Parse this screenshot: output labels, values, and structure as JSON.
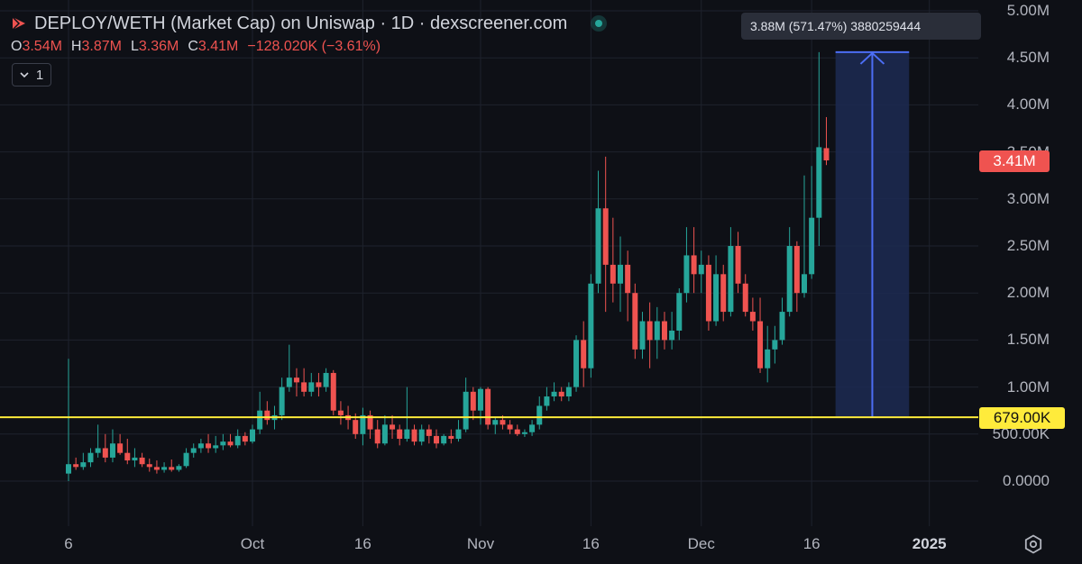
{
  "header": {
    "title": "DEPLOY/WETH (Market Cap) on Uniswap · 1D · dexscreener.com",
    "ohlc": {
      "open_label": "O",
      "open": "3.54M",
      "high_label": "H",
      "high": "3.87M",
      "low_label": "L",
      "low": "3.36M",
      "close_label": "C",
      "close": "3.41M",
      "change": "−128.020K (−3.61%)"
    },
    "collapse_count": "1"
  },
  "measure_tooltip": "3.88M (571.47%) 3880259444",
  "last_price_badge": "3.41M",
  "horizontal_line_badge": "679.00K",
  "colors": {
    "up": "#26a69a",
    "down": "#ef5350",
    "background": "#0e1016",
    "horizontal_line": "#ffeb3b",
    "measure_fill": "#1c2a52",
    "measure_line": "#4c6ef5"
  },
  "icons": [
    "dexscreener-logo-icon",
    "live-status-icon",
    "chevron-down-icon",
    "settings-icon"
  ],
  "chart_data": {
    "type": "candlestick",
    "y_axis": {
      "ticks": [
        "0.0000",
        "500.00K",
        "1.00M",
        "1.50M",
        "2.00M",
        "2.50M",
        "3.00M",
        "3.50M",
        "4.00M",
        "4.50M",
        "5.00M"
      ],
      "range": [
        0,
        5000000
      ]
    },
    "x_axis": {
      "ticks": [
        {
          "label": "6",
          "index": 0
        },
        {
          "label": "Oct",
          "index": 25
        },
        {
          "label": "16",
          "index": 40
        },
        {
          "label": "Nov",
          "index": 56
        },
        {
          "label": "16",
          "index": 71
        },
        {
          "label": "Dec",
          "index": 86
        },
        {
          "label": "16",
          "index": 101
        },
        {
          "label": "2025",
          "index": 117,
          "bold": true
        }
      ]
    },
    "horizontal_line": 679000,
    "measure": {
      "from_index": 104,
      "to_index": 114,
      "low": 679000,
      "high": 4560000
    },
    "candles": [
      [
        80000,
        1300000,
        0,
        180000
      ],
      [
        180000,
        250000,
        120000,
        150000
      ],
      [
        150000,
        300000,
        120000,
        200000
      ],
      [
        200000,
        350000,
        150000,
        300000
      ],
      [
        300000,
        600000,
        250000,
        350000
      ],
      [
        350000,
        500000,
        200000,
        250000
      ],
      [
        250000,
        550000,
        200000,
        400000
      ],
      [
        400000,
        500000,
        280000,
        300000
      ],
      [
        300000,
        450000,
        180000,
        220000
      ],
      [
        220000,
        350000,
        150000,
        250000
      ],
      [
        250000,
        300000,
        150000,
        180000
      ],
      [
        180000,
        240000,
        100000,
        150000
      ],
      [
        150000,
        220000,
        80000,
        120000
      ],
      [
        120000,
        200000,
        90000,
        150000
      ],
      [
        150000,
        230000,
        100000,
        120000
      ],
      [
        120000,
        180000,
        100000,
        160000
      ],
      [
        160000,
        350000,
        140000,
        300000
      ],
      [
        300000,
        400000,
        250000,
        350000
      ],
      [
        350000,
        450000,
        300000,
        400000
      ],
      [
        400000,
        500000,
        300000,
        350000
      ],
      [
        350000,
        480000,
        300000,
        380000
      ],
      [
        380000,
        500000,
        330000,
        420000
      ],
      [
        420000,
        500000,
        360000,
        380000
      ],
      [
        380000,
        550000,
        350000,
        480000
      ],
      [
        480000,
        520000,
        380000,
        420000
      ],
      [
        420000,
        600000,
        400000,
        550000
      ],
      [
        550000,
        950000,
        500000,
        750000
      ],
      [
        750000,
        850000,
        600000,
        650000
      ],
      [
        650000,
        800000,
        550000,
        700000
      ],
      [
        700000,
        1100000,
        650000,
        1000000
      ],
      [
        1000000,
        1450000,
        950000,
        1100000
      ],
      [
        1100000,
        1200000,
        900000,
        1050000
      ],
      [
        1050000,
        1200000,
        900000,
        950000
      ],
      [
        950000,
        1150000,
        900000,
        1050000
      ],
      [
        1050000,
        1150000,
        900000,
        1000000
      ],
      [
        1000000,
        1200000,
        950000,
        1150000
      ],
      [
        1150000,
        1180000,
        700000,
        750000
      ],
      [
        750000,
        850000,
        600000,
        700000
      ],
      [
        700000,
        800000,
        550000,
        650000
      ],
      [
        650000,
        720000,
        450000,
        500000
      ],
      [
        500000,
        780000,
        380000,
        700000
      ],
      [
        700000,
        750000,
        450000,
        550000
      ],
      [
        550000,
        650000,
        350000,
        400000
      ],
      [
        400000,
        700000,
        380000,
        600000
      ],
      [
        600000,
        700000,
        450000,
        550000
      ],
      [
        550000,
        600000,
        380000,
        450000
      ],
      [
        450000,
        1000000,
        420000,
        550000
      ],
      [
        550000,
        600000,
        380000,
        420000
      ],
      [
        420000,
        600000,
        380000,
        550000
      ],
      [
        550000,
        600000,
        400000,
        480000
      ],
      [
        480000,
        550000,
        350000,
        400000
      ],
      [
        400000,
        500000,
        380000,
        480000
      ],
      [
        480000,
        550000,
        400000,
        450000
      ],
      [
        450000,
        650000,
        420000,
        550000
      ],
      [
        550000,
        1100000,
        520000,
        950000
      ],
      [
        950000,
        1000000,
        650000,
        750000
      ],
      [
        750000,
        1000000,
        600000,
        980000
      ],
      [
        980000,
        1000000,
        550000,
        600000
      ],
      [
        600000,
        680000,
        500000,
        650000
      ],
      [
        650000,
        700000,
        550000,
        600000
      ],
      [
        600000,
        650000,
        500000,
        550000
      ],
      [
        550000,
        600000,
        480000,
        500000
      ],
      [
        500000,
        550000,
        470000,
        520000
      ],
      [
        520000,
        650000,
        480000,
        600000
      ],
      [
        600000,
        900000,
        550000,
        800000
      ],
      [
        800000,
        1000000,
        750000,
        900000
      ],
      [
        900000,
        1050000,
        850000,
        950000
      ],
      [
        950000,
        1000000,
        850000,
        900000
      ],
      [
        900000,
        1050000,
        850000,
        1000000
      ],
      [
        1000000,
        1550000,
        950000,
        1500000
      ],
      [
        1500000,
        1700000,
        1000000,
        1200000
      ],
      [
        1200000,
        2200000,
        1100000,
        2100000
      ],
      [
        2100000,
        3300000,
        2000000,
        2900000
      ],
      [
        2900000,
        3450000,
        1800000,
        2300000
      ],
      [
        2300000,
        2800000,
        1900000,
        2100000
      ],
      [
        2100000,
        2600000,
        1800000,
        2300000
      ],
      [
        2300000,
        2450000,
        1700000,
        2000000
      ],
      [
        2000000,
        2100000,
        1300000,
        1400000
      ],
      [
        1400000,
        1800000,
        1300000,
        1700000
      ],
      [
        1700000,
        1900000,
        1200000,
        1500000
      ],
      [
        1500000,
        1850000,
        1300000,
        1700000
      ],
      [
        1700000,
        1800000,
        1400000,
        1500000
      ],
      [
        1500000,
        1800000,
        1400000,
        1600000
      ],
      [
        1600000,
        2050000,
        1500000,
        2000000
      ],
      [
        2000000,
        2700000,
        1900000,
        2400000
      ],
      [
        2400000,
        2700000,
        2000000,
        2200000
      ],
      [
        2200000,
        2450000,
        2000000,
        2300000
      ],
      [
        2300000,
        2400000,
        1600000,
        1700000
      ],
      [
        1700000,
        2400000,
        1650000,
        2200000
      ],
      [
        2200000,
        2300000,
        1700000,
        1800000
      ],
      [
        1800000,
        2700000,
        1750000,
        2500000
      ],
      [
        2500000,
        2650000,
        2000000,
        2100000
      ],
      [
        2100000,
        2200000,
        1750000,
        1800000
      ],
      [
        1800000,
        1950000,
        1600000,
        1700000
      ],
      [
        1700000,
        1950000,
        1150000,
        1200000
      ],
      [
        1200000,
        1650000,
        1050000,
        1400000
      ],
      [
        1400000,
        1650000,
        1250000,
        1500000
      ],
      [
        1500000,
        1950000,
        1450000,
        1800000
      ],
      [
        1800000,
        2700000,
        1750000,
        2500000
      ],
      [
        2500000,
        2550000,
        1800000,
        2000000
      ],
      [
        2000000,
        3250000,
        1950000,
        2200000
      ],
      [
        2200000,
        3350000,
        2150000,
        2800000
      ],
      [
        2800000,
        4560000,
        2500000,
        3550000
      ],
      [
        3540000,
        3870000,
        3360000,
        3410000
      ]
    ]
  }
}
